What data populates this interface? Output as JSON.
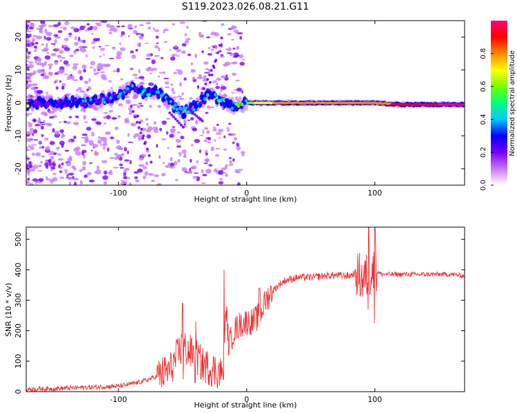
{
  "title": "S119.2023.026.08.21.G11",
  "chart_data": [
    {
      "type": "heatmap",
      "xlabel": "Height of straight line (km)",
      "ylabel": "Frequency (Hz)",
      "xlim": [
        -172,
        170
      ],
      "ylim": [
        -25,
        25
      ],
      "x_ticks": [
        -100,
        0,
        100
      ],
      "y_ticks": [
        -20,
        -10,
        0,
        10,
        20
      ],
      "colorbar": {
        "label": "Normalized spectral amplitude",
        "range": [
          0,
          1
        ],
        "ticks": [
          0.0,
          0.2,
          0.4,
          0.6,
          0.8
        ],
        "colors": [
          "#ffffff",
          "#c878ff",
          "#7800ff",
          "#0000ff",
          "#00c8ff",
          "#00ff78",
          "#78ff00",
          "#ffff00",
          "#ff8800",
          "#ff0000",
          "#ff0078"
        ]
      },
      "ridge": [
        {
          "x": -170,
          "y": 0.0,
          "amp": 0.3
        },
        {
          "x": -150,
          "y": 0.0,
          "amp": 0.3
        },
        {
          "x": -120,
          "y": 0.5,
          "amp": 0.35
        },
        {
          "x": -100,
          "y": 2.0,
          "amp": 0.4
        },
        {
          "x": -90,
          "y": 4.5,
          "amp": 0.4
        },
        {
          "x": -80,
          "y": 3.0,
          "amp": 0.45
        },
        {
          "x": -70,
          "y": 3.5,
          "amp": 0.4
        },
        {
          "x": -60,
          "y": 0.0,
          "amp": 0.4
        },
        {
          "x": -50,
          "y": -3.0,
          "amp": 0.45
        },
        {
          "x": -40,
          "y": -1.0,
          "amp": 0.45
        },
        {
          "x": -30,
          "y": 2.5,
          "amp": 0.5
        },
        {
          "x": -20,
          "y": 1.0,
          "amp": 0.55
        },
        {
          "x": -10,
          "y": -1.0,
          "amp": 0.55
        },
        {
          "x": 0,
          "y": 0.0,
          "amp": 0.6
        },
        {
          "x": 20,
          "y": 0.0,
          "amp": 0.75
        },
        {
          "x": 50,
          "y": 0.0,
          "amp": 0.85
        },
        {
          "x": 80,
          "y": 0.0,
          "amp": 0.8
        },
        {
          "x": 100,
          "y": 0.0,
          "amp": 0.75
        },
        {
          "x": 120,
          "y": -0.5,
          "amp": 0.9
        },
        {
          "x": 150,
          "y": -0.5,
          "amp": 0.95
        },
        {
          "x": 170,
          "y": -0.5,
          "amp": 0.95
        }
      ]
    },
    {
      "type": "line",
      "xlabel": "Height of straight line (km)",
      "ylabel": "SNR (10 * v/v)",
      "xlim": [
        -172,
        170
      ],
      "ylim": [
        0,
        540
      ],
      "x_ticks": [
        -100,
        0,
        100
      ],
      "y_ticks": [
        0,
        100,
        200,
        300,
        400,
        500
      ],
      "color": "#ee3030",
      "series": [
        {
          "x": [
            -172,
            -150,
            -120,
            -100,
            -90,
            -80,
            -70,
            -60,
            -55,
            -50,
            -45,
            -40,
            -35,
            -30,
            -25,
            -18,
            -16,
            -14,
            -10,
            -5,
            0,
            5,
            10,
            15,
            20,
            25,
            30,
            40,
            50,
            60,
            70,
            80,
            85,
            90,
            95,
            100,
            105,
            110,
            120,
            140,
            160,
            170
          ],
          "values": [
            8,
            10,
            15,
            18,
            25,
            35,
            50,
            70,
            110,
            150,
            130,
            120,
            90,
            80,
            70,
            60,
            280,
            150,
            200,
            220,
            230,
            230,
            250,
            300,
            330,
            350,
            365,
            375,
            375,
            380,
            382,
            380,
            390,
            370,
            380,
            400,
            385,
            385,
            385,
            385,
            385,
            380
          ]
        }
      ],
      "spikes": [
        {
          "x": -50,
          "low": 40,
          "high": 290
        },
        {
          "x": -40,
          "low": 30,
          "high": 230
        },
        {
          "x": -18,
          "low": 40,
          "high": 400
        },
        {
          "x": 10,
          "low": 130,
          "high": 340
        },
        {
          "x": 95,
          "low": 270,
          "high": 540
        },
        {
          "x": 100,
          "low": 225,
          "high": 530
        }
      ]
    }
  ]
}
